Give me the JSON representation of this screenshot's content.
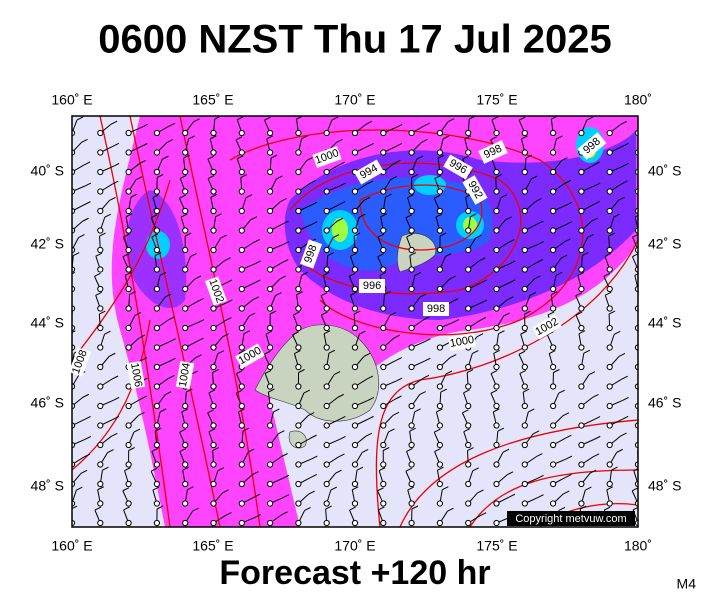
{
  "title": "0600 NZST Thu 17 Jul 2025",
  "longitude_labels": [
    "160˚ E",
    "165˚ E",
    "170˚ E",
    "175˚ E",
    "180˚"
  ],
  "latitude_labels": [
    "40˚ S",
    "42˚ S",
    "44˚ S",
    "46˚ S",
    "48˚ S"
  ],
  "isobar_labels": [
    "1000",
    "994",
    "996",
    "998",
    "992",
    "998",
    "996",
    "998",
    "1000",
    "1002",
    "1002",
    "1000",
    "1006",
    "1004",
    "1008",
    "998"
  ],
  "copyright": "Copyright metvuw.com",
  "footer": "Forecast +120 hr",
  "model": "M4"
}
